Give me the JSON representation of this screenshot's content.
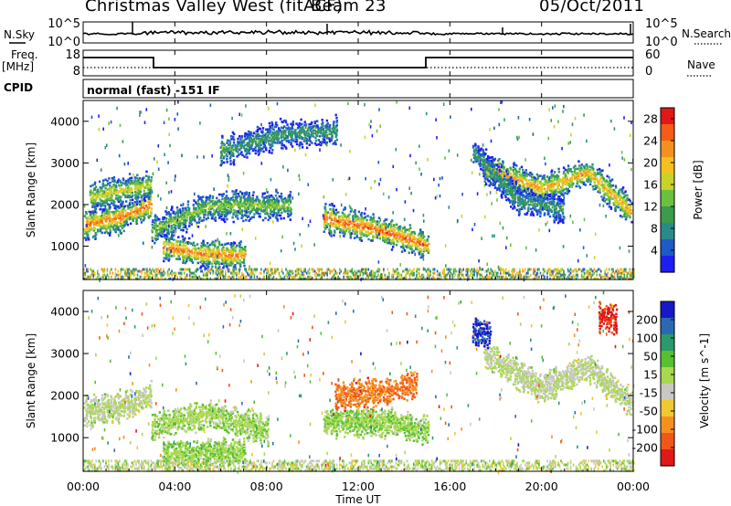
{
  "header": {
    "station": "Christmas Valley West (fitACF)",
    "beam": "Beam 23",
    "date": "05/Oct/2011"
  },
  "panels": {
    "nsky": {
      "label": "N.Sky",
      "tick_top": "10^5",
      "tick_bottom": "10^0"
    },
    "nsearch": {
      "label": "N.Search",
      "tick_top": "10^5",
      "tick_bottom": "10^0"
    },
    "freq": {
      "label_line1": "Freq.",
      "label_line2": "[MHz]",
      "tick_top": "18",
      "tick_bottom": "8"
    },
    "nave": {
      "label": "Nave",
      "tick_top": "60",
      "tick_bottom": "0"
    },
    "cpid": {
      "label": "CPID",
      "text": "normal (fast) -151 IF"
    }
  },
  "chart_data": [
    {
      "type": "heatmap",
      "parameter": "Power",
      "ylabel": "Slant Range [km]",
      "y_ticks": [
        "1000",
        "2000",
        "3000",
        "4000"
      ],
      "ylim": [
        200,
        4500
      ],
      "colorbar_label": "Power [dB]",
      "colorbar_ticks": [
        "4",
        "8",
        "12",
        "16",
        "20",
        "24",
        "28"
      ],
      "colorbar_range": [
        0,
        30
      ],
      "colorbar_colors": [
        "#1e1ef0",
        "#1e5ac8",
        "#2a8a8a",
        "#3c9c4c",
        "#6cc040",
        "#c8d228",
        "#f5c020",
        "#f59020",
        "#f55c18",
        "#e01818"
      ],
      "ridges": [
        {
          "points": [
            [
              0.0,
              1550
            ],
            [
              1.5,
              1700
            ],
            [
              3.0,
              2050
            ]
          ],
          "peak": 25
        },
        {
          "points": [
            [
              3.0,
              1400
            ],
            [
              5.5,
              2000
            ],
            [
              9.0,
              2000
            ]
          ],
          "peak": 15
        },
        {
          "points": [
            [
              3.5,
              1000
            ],
            [
              5.0,
              850
            ],
            [
              7.0,
              800
            ]
          ],
          "peak": 24
        },
        {
          "points": [
            [
              0.3,
              2200
            ],
            [
              1.5,
              2350
            ],
            [
              3.0,
              2500
            ]
          ],
          "peak": 18
        },
        {
          "points": [
            [
              10.5,
              1700
            ],
            [
              13.0,
              1400
            ],
            [
              15.0,
              1050
            ]
          ],
          "peak": 26
        },
        {
          "points": [
            [
              17.5,
              2900
            ],
            [
              20.0,
              2400
            ],
            [
              22.0,
              2800
            ],
            [
              24.0,
              1800
            ]
          ],
          "peak": 22
        },
        {
          "points": [
            [
              6.0,
              3300
            ],
            [
              8.5,
              3700
            ],
            [
              11.0,
              3800
            ]
          ],
          "peak": 10
        },
        {
          "points": [
            [
              17.0,
              3300
            ],
            [
              19.0,
              2100
            ],
            [
              21.0,
              1900
            ]
          ],
          "peak": 10
        }
      ]
    },
    {
      "type": "heatmap",
      "parameter": "Velocity",
      "ylabel": "Slant Range [km]",
      "y_ticks": [
        "1000",
        "2000",
        "3000",
        "4000"
      ],
      "ylim": [
        200,
        4500
      ],
      "colorbar_label": "Velocity [m s^-1]",
      "colorbar_ticks": [
        "200",
        "100",
        "50",
        "15",
        "-15",
        "-50",
        "-100",
        "-200"
      ],
      "colorbar_range": [
        -250,
        250
      ],
      "colorbar_colors": [
        "#1818c8",
        "#2a6ab4",
        "#2a9a6a",
        "#58c030",
        "#a8d850",
        "#c8c8c0",
        "#f0c830",
        "#f59020",
        "#f05818",
        "#e01818"
      ],
      "ridges": [
        {
          "points": [
            [
              0.0,
              1650
            ],
            [
              1.5,
              1750
            ],
            [
              3.0,
              2050
            ]
          ],
          "value": 0
        },
        {
          "points": [
            [
              3.0,
              1300
            ],
            [
              5.5,
              1600
            ],
            [
              8.0,
              1200
            ]
          ],
          "value": 30
        },
        {
          "points": [
            [
              3.5,
              650
            ],
            [
              5.0,
              650
            ],
            [
              7.0,
              700
            ]
          ],
          "value": 40
        },
        {
          "points": [
            [
              10.5,
              1400
            ],
            [
              13.0,
              1400
            ],
            [
              15.0,
              1200
            ]
          ],
          "value": 40
        },
        {
          "points": [
            [
              11.0,
              2000
            ],
            [
              13.0,
              2100
            ],
            [
              14.5,
              2300
            ]
          ],
          "value": -150
        },
        {
          "points": [
            [
              17.5,
              3000
            ],
            [
              20.0,
              2200
            ],
            [
              22.0,
              2700
            ],
            [
              24.0,
              1800
            ]
          ],
          "value": 0
        },
        {
          "points": [
            [
              17.0,
              3550
            ],
            [
              17.8,
              3450
            ]
          ],
          "value": 220
        },
        {
          "points": [
            [
              22.5,
              3900
            ],
            [
              23.3,
              3800
            ]
          ],
          "value": -220
        }
      ]
    }
  ],
  "time_axis": {
    "ticks": [
      "00:00",
      "04:00",
      "08:00",
      "12:00",
      "16:00",
      "20:00",
      "00:00"
    ],
    "range_hours": [
      0,
      24
    ],
    "xlabel": "Time UT"
  }
}
